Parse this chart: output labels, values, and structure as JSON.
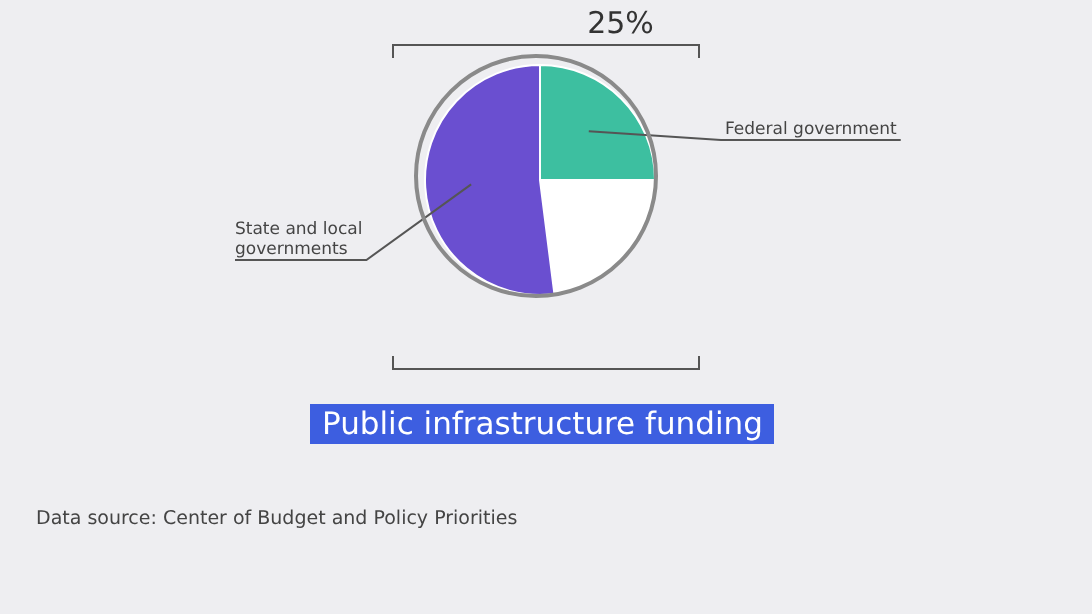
{
  "chart_data": {
    "type": "pie",
    "title": "Public infrastructure funding",
    "categories": [
      "Federal government",
      null,
      "State and local governments"
    ],
    "values": [
      25,
      23,
      52
    ],
    "colors": [
      "#3dbfa0",
      "#ffffff",
      "#6a4fd0"
    ],
    "value_labels": [
      "25%",
      null,
      null
    ],
    "legend": false,
    "annotations": [
      "Data source: Center of Budget and Policy Priorities"
    ]
  }
}
